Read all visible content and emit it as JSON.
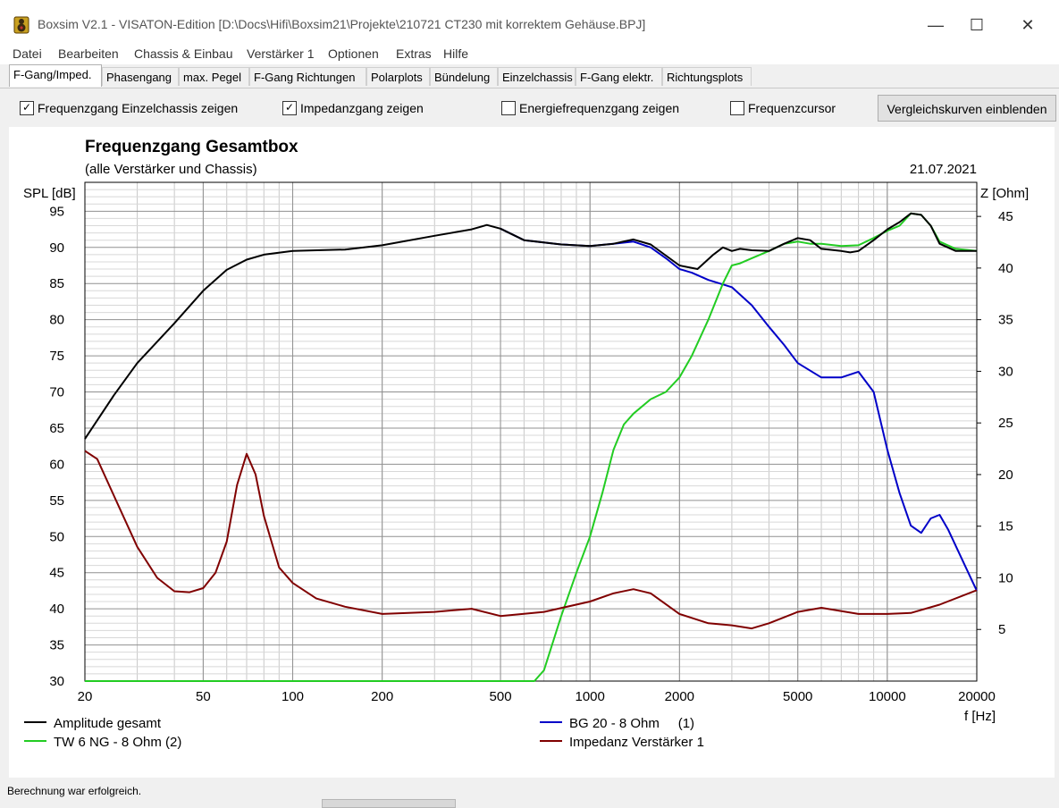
{
  "window": {
    "title": "Boxsim V2.1 - VISATON-Edition [D:\\Docs\\Hifi\\Boxsim21\\Projekte\\210721 CT230 mit korrektem Gehäuse.BPJ]",
    "minimize": "—",
    "maximize": "☐",
    "close": "✕"
  },
  "menu": [
    "Datei",
    "Bearbeiten",
    "Chassis & Einbau",
    "Verstärker 1",
    "Optionen",
    "Extras",
    "Hilfe"
  ],
  "tabs": [
    "F-Gang/Imped.",
    "Phasengang",
    "max. Pegel",
    "F-Gang Richtungen",
    "Polarplots",
    "Bündelung",
    "Einzelchassis",
    "F-Gang elektr.",
    "Richtungsplots"
  ],
  "active_tab": 0,
  "options": {
    "cb1": {
      "label": "Frequenzgang Einzelchassis zeigen",
      "checked": true
    },
    "cb2": {
      "label": "Impedanzgang zeigen",
      "checked": true
    },
    "cb3": {
      "label": "Energiefrequenzgang zeigen",
      "checked": false
    },
    "cb4": {
      "label": "Frequenzcursor",
      "checked": false
    },
    "button": "Vergleichskurven einblenden"
  },
  "status": "Berechnung war erfolgreich.",
  "chart_data": {
    "type": "line",
    "title": "Frequenzgang Gesamtbox",
    "subtitle": "(alle Verstärker und Chassis)",
    "date": "21.07.2021",
    "ylabel": "SPL [dB]",
    "y2label": "Z [Ohm]",
    "xlabel": "f [Hz]",
    "x_scale": "log",
    "xlim": [
      20,
      20000
    ],
    "ylim": [
      30,
      99
    ],
    "y2lim": [
      0,
      48.3
    ],
    "x_ticks": [
      20,
      50,
      100,
      200,
      500,
      1000,
      2000,
      5000,
      10000,
      20000
    ],
    "x_tick_labels": [
      "20",
      "50",
      "100",
      "200",
      "500",
      "1000",
      "2000",
      "5000",
      "10000",
      "20000"
    ],
    "y_ticks": [
      30,
      35,
      40,
      45,
      50,
      55,
      60,
      65,
      70,
      75,
      80,
      85,
      90,
      95
    ],
    "y2_ticks": [
      5,
      10,
      15,
      20,
      25,
      30,
      35,
      40,
      45
    ],
    "grid": true,
    "legend_position": "bottom",
    "series": [
      {
        "name": "Amplitude gesamt",
        "color": "#000000",
        "axis": "spl",
        "x": [
          20,
          25,
          30,
          40,
          50,
          60,
          70,
          80,
          100,
          150,
          200,
          300,
          400,
          450,
          500,
          600,
          800,
          1000,
          1200,
          1400,
          1600,
          2000,
          2300,
          2600,
          2800,
          3000,
          3200,
          3500,
          4000,
          4500,
          5000,
          5500,
          6000,
          7000,
          7500,
          8000,
          9000,
          10000,
          11000,
          12000,
          13000,
          14000,
          15000,
          17000,
          20000
        ],
        "values": [
          63.5,
          69.5,
          74,
          79.5,
          84,
          86.9,
          88.3,
          89,
          89.5,
          89.7,
          90.3,
          91.6,
          92.5,
          93.1,
          92.6,
          91,
          90.4,
          90.2,
          90.5,
          91.1,
          90.4,
          87.5,
          87,
          89,
          90,
          89.5,
          89.8,
          89.6,
          89.5,
          90.5,
          91.3,
          91,
          89.8,
          89.5,
          89.3,
          89.5,
          91,
          92.5,
          93.5,
          94.7,
          94.5,
          93,
          90.5,
          89.5,
          89.5
        ]
      },
      {
        "name": "BG 20 - 8 Ohm     (1)",
        "color": "#0000c8",
        "axis": "spl",
        "x": [
          500,
          600,
          800,
          1000,
          1200,
          1400,
          1600,
          1800,
          2000,
          2200,
          2500,
          3000,
          3500,
          4000,
          4500,
          5000,
          6000,
          7000,
          8000,
          9000,
          10000,
          11000,
          12000,
          13000,
          14000,
          15000,
          16000,
          18000,
          20000
        ],
        "values": [
          92.6,
          91,
          90.4,
          90.2,
          90.5,
          90.8,
          90,
          88.5,
          87,
          86.5,
          85.5,
          84.5,
          82,
          79,
          76.5,
          74,
          72,
          72,
          72.8,
          70,
          62,
          56,
          51.5,
          50.5,
          52.5,
          53,
          51,
          46.5,
          42.5
        ]
      },
      {
        "name": "TW 6 NG - 8 Ohm (2)",
        "color": "#22cc22",
        "axis": "spl",
        "x": [
          20,
          650,
          700,
          800,
          900,
          1000,
          1100,
          1200,
          1300,
          1400,
          1600,
          1800,
          2000,
          2200,
          2500,
          2800,
          3000,
          3200,
          3500,
          4000,
          4500,
          5000,
          5500,
          6000,
          7000,
          8000,
          9000,
          10000,
          11000,
          12000,
          13000,
          14000,
          15000,
          17000,
          20000
        ],
        "values": [
          30,
          30,
          31.5,
          39,
          45,
          50,
          56,
          62,
          65.5,
          67,
          69,
          70,
          72,
          75,
          80,
          85,
          87.5,
          87.8,
          88.5,
          89.5,
          90.5,
          90.8,
          90.5,
          90.5,
          90.2,
          90.3,
          91.3,
          92.3,
          93,
          94.7,
          94.5,
          93,
          90.8,
          89.8,
          89.5
        ]
      },
      {
        "name": "Impedanz Verstärker 1",
        "color": "#800000",
        "axis": "impedance",
        "x": [
          20,
          22,
          25,
          30,
          35,
          40,
          45,
          50,
          55,
          60,
          65,
          70,
          75,
          80,
          90,
          100,
          120,
          150,
          200,
          300,
          400,
          500,
          700,
          1000,
          1200,
          1400,
          1600,
          2000,
          2500,
          3000,
          3500,
          4000,
          5000,
          6000,
          8000,
          10000,
          12000,
          15000,
          20000
        ],
        "values": [
          22.3,
          21.5,
          18,
          13,
          10,
          8.7,
          8.6,
          9,
          10.5,
          13.5,
          19,
          22,
          20,
          16,
          11,
          9.5,
          8,
          7.2,
          6.5,
          6.7,
          7,
          6.3,
          6.7,
          7.7,
          8.5,
          8.9,
          8.5,
          6.5,
          5.6,
          5.4,
          5.1,
          5.6,
          6.7,
          7.1,
          6.5,
          6.5,
          6.6,
          7.4,
          8.8
        ]
      }
    ]
  }
}
